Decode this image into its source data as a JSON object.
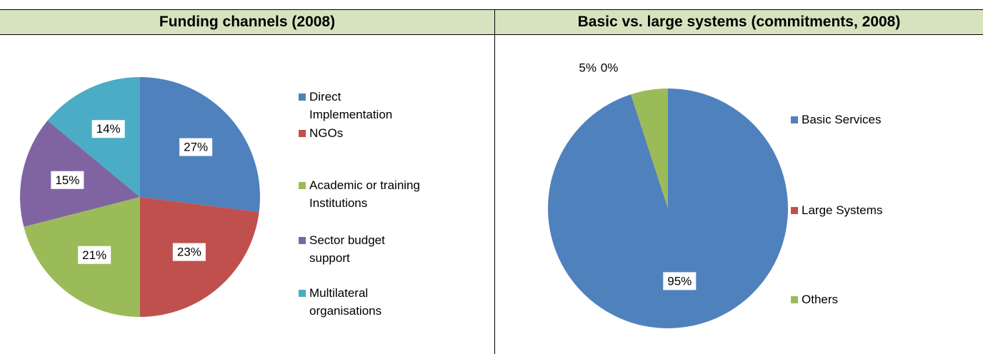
{
  "chart_data": [
    {
      "type": "pie",
      "title": "Funding channels (2008)",
      "categories": [
        "Direct Implementation",
        "NGOs",
        "Academic or training Institutions",
        "Sector budget support",
        "Multilateral organisations"
      ],
      "values": [
        27,
        23,
        21,
        15,
        14
      ],
      "value_labels": [
        "27%",
        "23%",
        "21%",
        "15%",
        "14%"
      ],
      "colors": [
        "#4f81bd",
        "#c0504d",
        "#9bbb59",
        "#8064a2",
        "#4bacc6"
      ],
      "legend": "right"
    },
    {
      "type": "pie",
      "title": "Basic vs. large systems (commitments, 2008)",
      "categories": [
        "Basic Services",
        "Large Systems",
        "Others"
      ],
      "values": [
        95,
        0,
        5
      ],
      "value_labels": [
        "95%",
        "0%",
        "5%"
      ],
      "colors": [
        "#4f81bd",
        "#c0504d",
        "#9bbb59"
      ],
      "legend": "right"
    }
  ]
}
